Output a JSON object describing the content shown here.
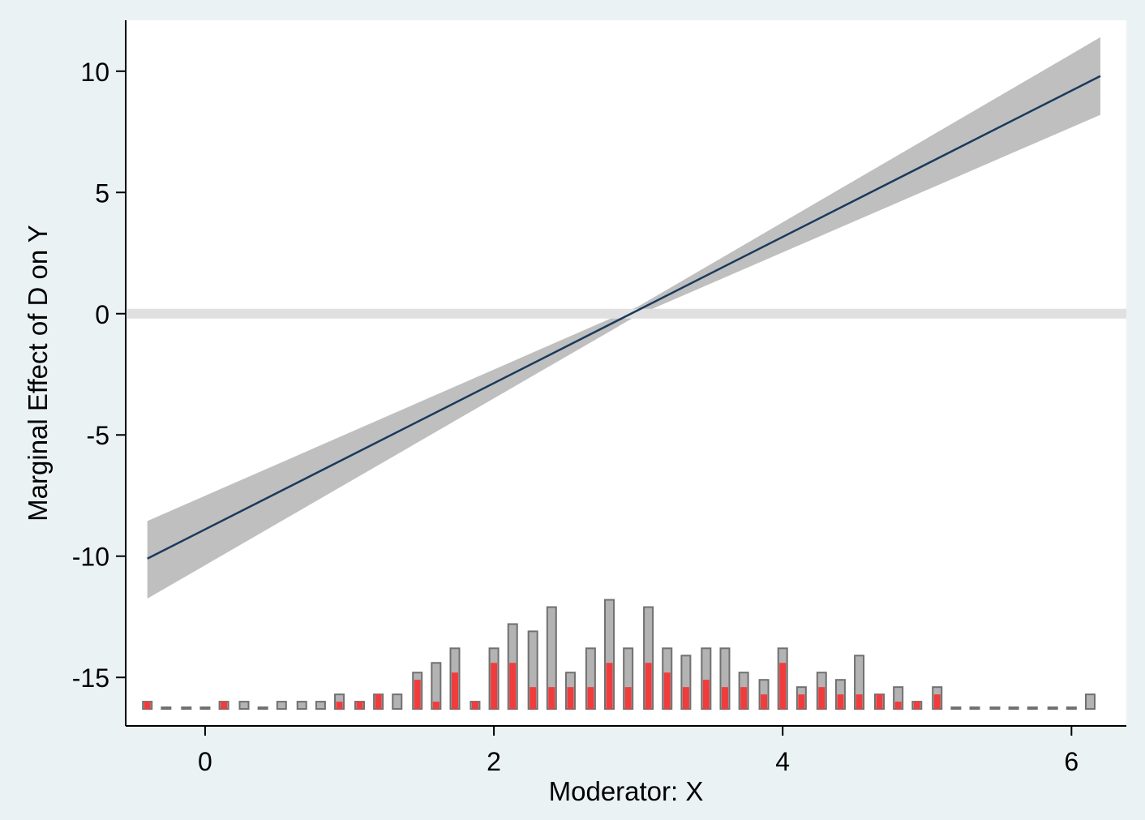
{
  "chart_data": {
    "type": "line",
    "title": "",
    "xlabel": "Moderator: X",
    "ylabel": "Marginal Effect of D on Y",
    "xlim": [
      -0.55,
      6.38
    ],
    "ylim": [
      -17.0,
      12.1
    ],
    "x_ticks": [
      0,
      2,
      4,
      6
    ],
    "y_ticks": [
      10,
      5,
      0,
      -5,
      -10,
      -15
    ],
    "x_tick_labels": [
      "0",
      "2",
      "4",
      "6"
    ],
    "y_tick_labels": [
      "10",
      "5",
      "0",
      "-5",
      "-10",
      "-15"
    ],
    "grid": false,
    "legend": "none",
    "reference_line_y": 0,
    "marginal_effect_line": {
      "x": [
        -0.4,
        6.2
      ],
      "y": [
        -10.1,
        9.8
      ]
    },
    "confidence_band": {
      "x": [
        -0.4,
        3.0,
        6.2
      ],
      "lower": [
        -11.75,
        -0.05,
        8.2
      ],
      "upper": [
        -8.55,
        0.3,
        11.4
      ]
    },
    "histogram": {
      "baseline": -16.3,
      "bin_centers": [
        -0.4,
        -0.27,
        -0.13,
        0.0,
        0.13,
        0.27,
        0.4,
        0.53,
        0.67,
        0.8,
        0.93,
        1.07,
        1.2,
        1.33,
        1.47,
        1.6,
        1.73,
        1.87,
        2.0,
        2.13,
        2.27,
        2.4,
        2.53,
        2.67,
        2.8,
        2.93,
        3.07,
        3.2,
        3.33,
        3.47,
        3.6,
        3.73,
        3.87,
        4.0,
        4.13,
        4.27,
        4.4,
        4.53,
        4.67,
        4.8,
        4.93,
        5.07,
        5.2,
        5.33,
        5.47,
        5.6,
        5.73,
        5.87,
        6.0,
        6.13
      ],
      "total_top": [
        -16.0,
        -16.3,
        -16.3,
        -16.3,
        -16.0,
        -16.0,
        -16.3,
        -16.0,
        -16.0,
        -16.0,
        -15.7,
        -16.0,
        -15.7,
        -15.7,
        -14.8,
        -14.4,
        -13.8,
        -16.0,
        -13.8,
        -12.8,
        -13.1,
        -12.1,
        -14.8,
        -13.8,
        -11.8,
        -13.8,
        -12.1,
        -13.8,
        -14.1,
        -13.8,
        -13.8,
        -14.8,
        -15.1,
        -13.8,
        -15.4,
        -14.8,
        -15.1,
        -14.1,
        -15.7,
        -15.4,
        -16.0,
        -15.4,
        -16.3,
        -16.3,
        -16.3,
        -16.3,
        -16.3,
        -16.3,
        -16.3,
        -15.7
      ],
      "treated_top": [
        -16.0,
        -16.3,
        -16.3,
        -16.3,
        -16.0,
        -16.3,
        -16.3,
        -16.3,
        -16.3,
        -16.3,
        -16.0,
        -16.0,
        -15.7,
        -16.3,
        -15.1,
        -16.0,
        -14.8,
        -16.0,
        -14.4,
        -14.4,
        -15.4,
        -15.4,
        -15.4,
        -15.4,
        -14.4,
        -15.4,
        -14.4,
        -14.8,
        -15.4,
        -15.1,
        -15.4,
        -15.4,
        -15.7,
        -14.4,
        -15.7,
        -15.4,
        -15.7,
        -15.7,
        -15.7,
        -16.0,
        -16.0,
        -15.7,
        -16.3,
        -16.3,
        -16.3,
        -16.3,
        -16.3,
        -16.3,
        -16.3,
        -16.3
      ]
    },
    "colors": {
      "background": "#eaf2f3",
      "plot_area": "#ffffff",
      "line": "#1a3a5c",
      "band": "#bfbfbf",
      "reference_line": "#e0e0e0",
      "bar_total": "#b3b3b3",
      "bar_treated": "#f03c3c",
      "bar_stroke": "#707070"
    }
  }
}
